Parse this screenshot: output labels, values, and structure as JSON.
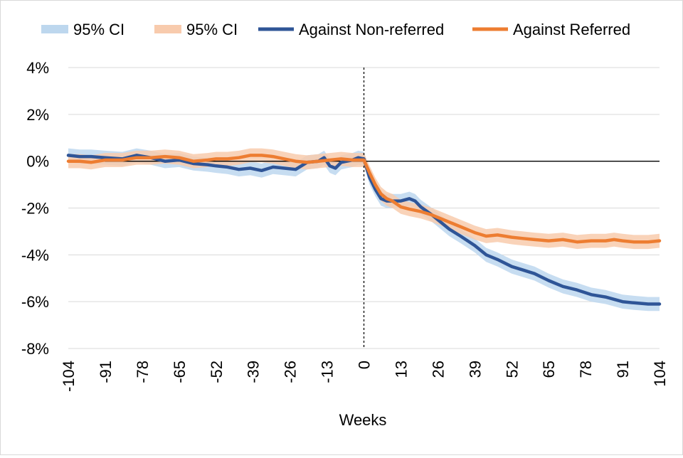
{
  "chart_data": {
    "type": "line",
    "title": "",
    "xlabel": "Weeks",
    "ylabel": "",
    "xlim": [
      -104,
      104
    ],
    "ylim": [
      -8,
      4
    ],
    "x_ticks": [
      "-104",
      "-91",
      "-78",
      "-65",
      "-52",
      "-39",
      "-26",
      "-13",
      "0",
      "13",
      "26",
      "39",
      "52",
      "65",
      "78",
      "91",
      "104"
    ],
    "y_ticks": [
      "4%",
      "2%",
      "0%",
      "-2%",
      "-4%",
      "-6%",
      "-8%"
    ],
    "grid": "horizontal",
    "reference_lines": {
      "horizontal_y": 0,
      "vertical_x_dashed": 0
    },
    "legend_position": "top",
    "legend": [
      "95% CI",
      "95% CI",
      "Against Non-referred",
      "Against Referred"
    ],
    "colors": {
      "non_referred_line": "#2f5597",
      "non_referred_ci": "#bdd7ee",
      "referred_line": "#ed7d31",
      "referred_ci": "#f8cbad"
    },
    "series": [
      {
        "name": "Against Non-referred",
        "ci_half_width": 0.3,
        "points": [
          [
            -104,
            0.25
          ],
          [
            -100,
            0.2
          ],
          [
            -96,
            0.2
          ],
          [
            -91,
            0.15
          ],
          [
            -85,
            0.1
          ],
          [
            -80,
            0.25
          ],
          [
            -75,
            0.15
          ],
          [
            -70,
            0.0
          ],
          [
            -65,
            0.05
          ],
          [
            -60,
            -0.1
          ],
          [
            -55,
            -0.15
          ],
          [
            -52,
            -0.2
          ],
          [
            -48,
            -0.25
          ],
          [
            -44,
            -0.35
          ],
          [
            -40,
            -0.3
          ],
          [
            -36,
            -0.4
          ],
          [
            -32,
            -0.25
          ],
          [
            -28,
            -0.3
          ],
          [
            -24,
            -0.35
          ],
          [
            -20,
            -0.05
          ],
          [
            -16,
            0.0
          ],
          [
            -14,
            0.15
          ],
          [
            -12,
            -0.2
          ],
          [
            -10,
            -0.3
          ],
          [
            -8,
            -0.05
          ],
          [
            -6,
            0.0
          ],
          [
            -4,
            0.05
          ],
          [
            -2,
            0.15
          ],
          [
            0,
            0.1
          ],
          [
            2,
            -0.7
          ],
          [
            4,
            -1.2
          ],
          [
            6,
            -1.6
          ],
          [
            8,
            -1.7
          ],
          [
            10,
            -1.7
          ],
          [
            13,
            -1.7
          ],
          [
            16,
            -1.6
          ],
          [
            18,
            -1.7
          ],
          [
            20,
            -1.95
          ],
          [
            24,
            -2.3
          ],
          [
            26,
            -2.5
          ],
          [
            30,
            -2.9
          ],
          [
            34,
            -3.2
          ],
          [
            39,
            -3.6
          ],
          [
            43,
            -4.0
          ],
          [
            47,
            -4.2
          ],
          [
            52,
            -4.5
          ],
          [
            56,
            -4.65
          ],
          [
            60,
            -4.8
          ],
          [
            65,
            -5.1
          ],
          [
            70,
            -5.35
          ],
          [
            75,
            -5.5
          ],
          [
            80,
            -5.7
          ],
          [
            85,
            -5.8
          ],
          [
            91,
            -6.0
          ],
          [
            95,
            -6.05
          ],
          [
            100,
            -6.1
          ],
          [
            104,
            -6.1
          ]
        ]
      },
      {
        "name": "Against Referred",
        "ci_half_width": 0.3,
        "points": [
          [
            -104,
            0.0
          ],
          [
            -100,
            0.0
          ],
          [
            -96,
            -0.05
          ],
          [
            -91,
            0.05
          ],
          [
            -85,
            0.05
          ],
          [
            -80,
            0.15
          ],
          [
            -75,
            0.15
          ],
          [
            -70,
            0.2
          ],
          [
            -65,
            0.15
          ],
          [
            -60,
            0.0
          ],
          [
            -55,
            0.05
          ],
          [
            -52,
            0.1
          ],
          [
            -48,
            0.1
          ],
          [
            -44,
            0.15
          ],
          [
            -40,
            0.25
          ],
          [
            -36,
            0.25
          ],
          [
            -32,
            0.2
          ],
          [
            -28,
            0.1
          ],
          [
            -24,
            0.0
          ],
          [
            -20,
            -0.05
          ],
          [
            -16,
            0.0
          ],
          [
            -12,
            0.05
          ],
          [
            -8,
            0.1
          ],
          [
            -4,
            0.05
          ],
          [
            0,
            0.05
          ],
          [
            2,
            -0.5
          ],
          [
            4,
            -1.0
          ],
          [
            6,
            -1.4
          ],
          [
            8,
            -1.6
          ],
          [
            10,
            -1.7
          ],
          [
            13,
            -1.95
          ],
          [
            16,
            -2.05
          ],
          [
            20,
            -2.15
          ],
          [
            24,
            -2.3
          ],
          [
            28,
            -2.5
          ],
          [
            32,
            -2.7
          ],
          [
            36,
            -2.9
          ],
          [
            39,
            -3.05
          ],
          [
            43,
            -3.2
          ],
          [
            47,
            -3.15
          ],
          [
            52,
            -3.25
          ],
          [
            56,
            -3.3
          ],
          [
            60,
            -3.35
          ],
          [
            65,
            -3.4
          ],
          [
            70,
            -3.35
          ],
          [
            75,
            -3.45
          ],
          [
            80,
            -3.4
          ],
          [
            85,
            -3.4
          ],
          [
            88,
            -3.35
          ],
          [
            91,
            -3.4
          ],
          [
            95,
            -3.45
          ],
          [
            100,
            -3.45
          ],
          [
            104,
            -3.4
          ]
        ]
      }
    ]
  }
}
